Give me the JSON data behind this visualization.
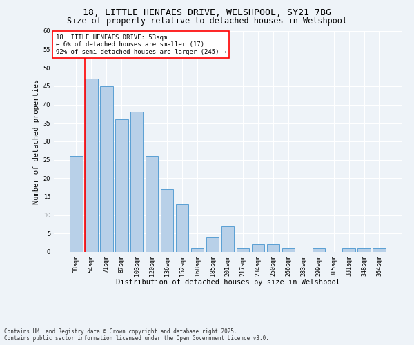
{
  "title_line1": "18, LITTLE HENFAES DRIVE, WELSHPOOL, SY21 7BG",
  "title_line2": "Size of property relative to detached houses in Welshpool",
  "xlabel": "Distribution of detached houses by size in Welshpool",
  "ylabel": "Number of detached properties",
  "categories": [
    "38sqm",
    "54sqm",
    "71sqm",
    "87sqm",
    "103sqm",
    "120sqm",
    "136sqm",
    "152sqm",
    "168sqm",
    "185sqm",
    "201sqm",
    "217sqm",
    "234sqm",
    "250sqm",
    "266sqm",
    "283sqm",
    "299sqm",
    "315sqm",
    "331sqm",
    "348sqm",
    "364sqm"
  ],
  "values": [
    26,
    47,
    45,
    36,
    38,
    26,
    17,
    13,
    1,
    4,
    7,
    1,
    2,
    2,
    1,
    0,
    1,
    0,
    1,
    1,
    1
  ],
  "bar_color": "#b8d0e8",
  "bar_edge_color": "#5a9fd4",
  "ylim": [
    0,
    60
  ],
  "yticks": [
    0,
    5,
    10,
    15,
    20,
    25,
    30,
    35,
    40,
    45,
    50,
    55,
    60
  ],
  "annotation_box_text_line1": "18 LITTLE HENFAES DRIVE: 53sqm",
  "annotation_box_text_line2": "← 6% of detached houses are smaller (17)",
  "annotation_box_text_line3": "92% of semi-detached houses are larger (245) →",
  "vline_x_index": 1,
  "bg_color": "#eef3f8",
  "footer_line1": "Contains HM Land Registry data © Crown copyright and database right 2025.",
  "footer_line2": "Contains public sector information licensed under the Open Government Licence v3.0.",
  "grid_color": "#ffffff",
  "title_fontsize": 9.5,
  "subtitle_fontsize": 8.5,
  "annotation_fontsize": 6.5,
  "axis_label_fontsize": 7.5,
  "tick_fontsize": 6,
  "footer_fontsize": 5.5
}
